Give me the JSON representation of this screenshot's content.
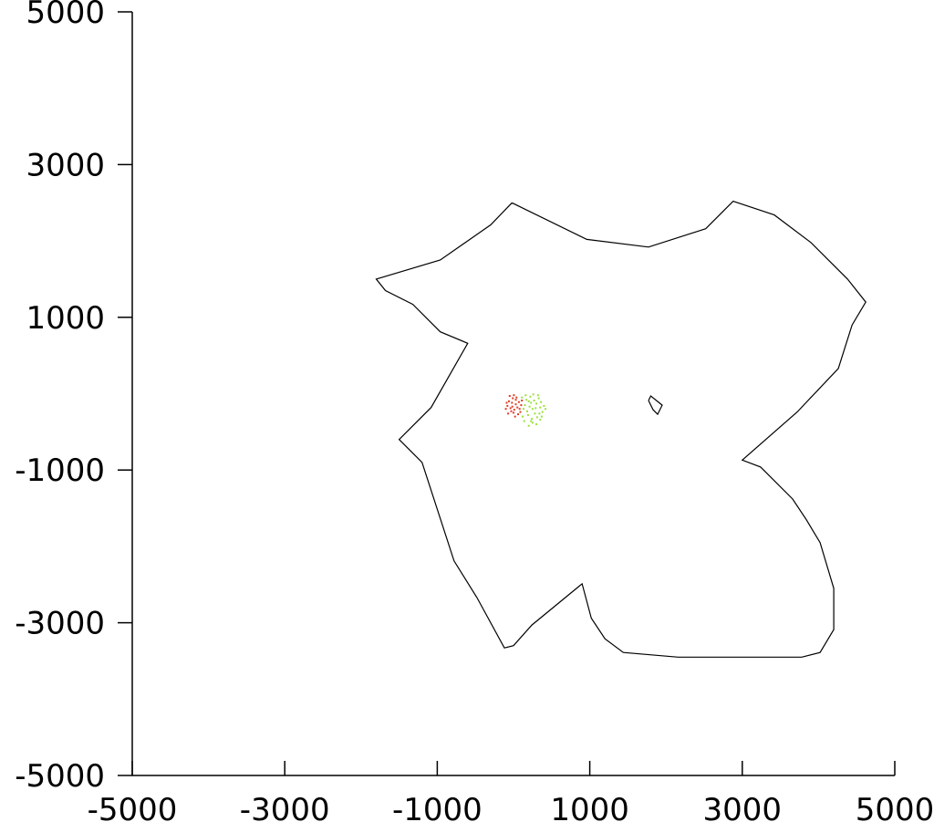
{
  "chart_data": {
    "type": "scatter",
    "title": "",
    "xlabel": "",
    "ylabel": "",
    "xlim": [
      -5000,
      5000
    ],
    "ylim": [
      -5000,
      5000
    ],
    "grid": false,
    "x_ticks": [
      -5000,
      -3000,
      -1000,
      1000,
      3000,
      5000
    ],
    "y_ticks": [
      5000,
      3000,
      1000,
      -1000,
      -3000,
      -5000
    ],
    "x_tick_labels": [
      "-5000",
      "-3000",
      "-1000",
      "1000",
      "3000",
      "5000"
    ],
    "y_tick_labels": [
      "5000",
      "3000",
      "1000",
      "-1000",
      "-3000",
      "-5000"
    ],
    "outline_color": "#000000",
    "outline": [
      [
        -20,
        2500
      ],
      [
        960,
        2020
      ],
      [
        1770,
        1920
      ],
      [
        2520,
        2160
      ],
      [
        2880,
        2520
      ],
      [
        3420,
        2340
      ],
      [
        3900,
        1980
      ],
      [
        4380,
        1500
      ],
      [
        4620,
        1200
      ],
      [
        4440,
        900
      ],
      [
        4260,
        330
      ],
      [
        3720,
        -240
      ],
      [
        3000,
        -870
      ],
      [
        3240,
        -960
      ],
      [
        3660,
        -1380
      ],
      [
        3840,
        -1650
      ],
      [
        4020,
        -1950
      ],
      [
        4200,
        -2550
      ],
      [
        4200,
        -3090
      ],
      [
        4020,
        -3390
      ],
      [
        3780,
        -3450
      ],
      [
        2160,
        -3450
      ],
      [
        1440,
        -3390
      ],
      [
        1200,
        -3210
      ],
      [
        1020,
        -2940
      ],
      [
        900,
        -2490
      ],
      [
        240,
        -3030
      ],
      [
        0,
        -3300
      ],
      [
        -120,
        -3330
      ],
      [
        -480,
        -2670
      ],
      [
        -780,
        -2190
      ],
      [
        -1200,
        -900
      ],
      [
        -1500,
        -600
      ],
      [
        -1080,
        -180
      ],
      [
        -600,
        660
      ],
      [
        -960,
        810
      ],
      [
        -1320,
        1170
      ],
      [
        -1680,
        1350
      ],
      [
        -1800,
        1500
      ],
      [
        -960,
        1750
      ],
      [
        -300,
        2210
      ],
      [
        -20,
        2500
      ]
    ],
    "hole": [
      [
        1770,
        -90
      ],
      [
        1830,
        -210
      ],
      [
        1890,
        -270
      ],
      [
        1950,
        -150
      ],
      [
        1800,
        -30
      ],
      [
        1770,
        -90
      ]
    ],
    "series": [
      {
        "color": "#e03c28",
        "points": [
          [
            -20,
            -120
          ],
          [
            -40,
            -190
          ],
          [
            -60,
            -100
          ],
          [
            10,
            -210
          ],
          [
            30,
            -140
          ],
          [
            -10,
            -60
          ],
          [
            50,
            -180
          ],
          [
            70,
            -110
          ],
          [
            -80,
            -160
          ],
          [
            0,
            -250
          ],
          [
            40,
            -50
          ],
          [
            -30,
            -230
          ],
          [
            80,
            -200
          ],
          [
            100,
            -150
          ],
          [
            -50,
            -30
          ],
          [
            20,
            -300
          ],
          [
            -70,
            -260
          ],
          [
            110,
            -90
          ],
          [
            60,
            -270
          ],
          [
            -100,
            -200
          ],
          [
            30,
            -80
          ],
          [
            -15,
            -170
          ],
          [
            90,
            -240
          ],
          [
            -90,
            -120
          ],
          [
            5,
            -20
          ]
        ]
      },
      {
        "color": "#9be03c",
        "points": [
          [
            150,
            -150
          ],
          [
            200,
            -100
          ],
          [
            250,
            -200
          ],
          [
            300,
            -130
          ],
          [
            350,
            -180
          ],
          [
            180,
            -230
          ],
          [
            220,
            -40
          ],
          [
            280,
            -260
          ],
          [
            330,
            -60
          ],
          [
            380,
            -240
          ],
          [
            120,
            -300
          ],
          [
            170,
            -80
          ],
          [
            240,
            -330
          ],
          [
            310,
            -310
          ],
          [
            360,
            -110
          ],
          [
            400,
            -160
          ],
          [
            130,
            -200
          ],
          [
            190,
            -280
          ],
          [
            260,
            -10
          ],
          [
            290,
            -190
          ],
          [
            210,
            -170
          ],
          [
            340,
            -260
          ],
          [
            160,
            -20
          ],
          [
            230,
            -360
          ],
          [
            300,
            -400
          ],
          [
            420,
            -200
          ],
          [
            140,
            -360
          ],
          [
            270,
            -90
          ],
          [
            200,
            -420
          ],
          [
            320,
            -20
          ],
          [
            250,
            -380
          ],
          [
            370,
            -300
          ],
          [
            110,
            -50
          ],
          [
            230,
            -120
          ],
          [
            350,
            -340
          ]
        ]
      }
    ]
  }
}
